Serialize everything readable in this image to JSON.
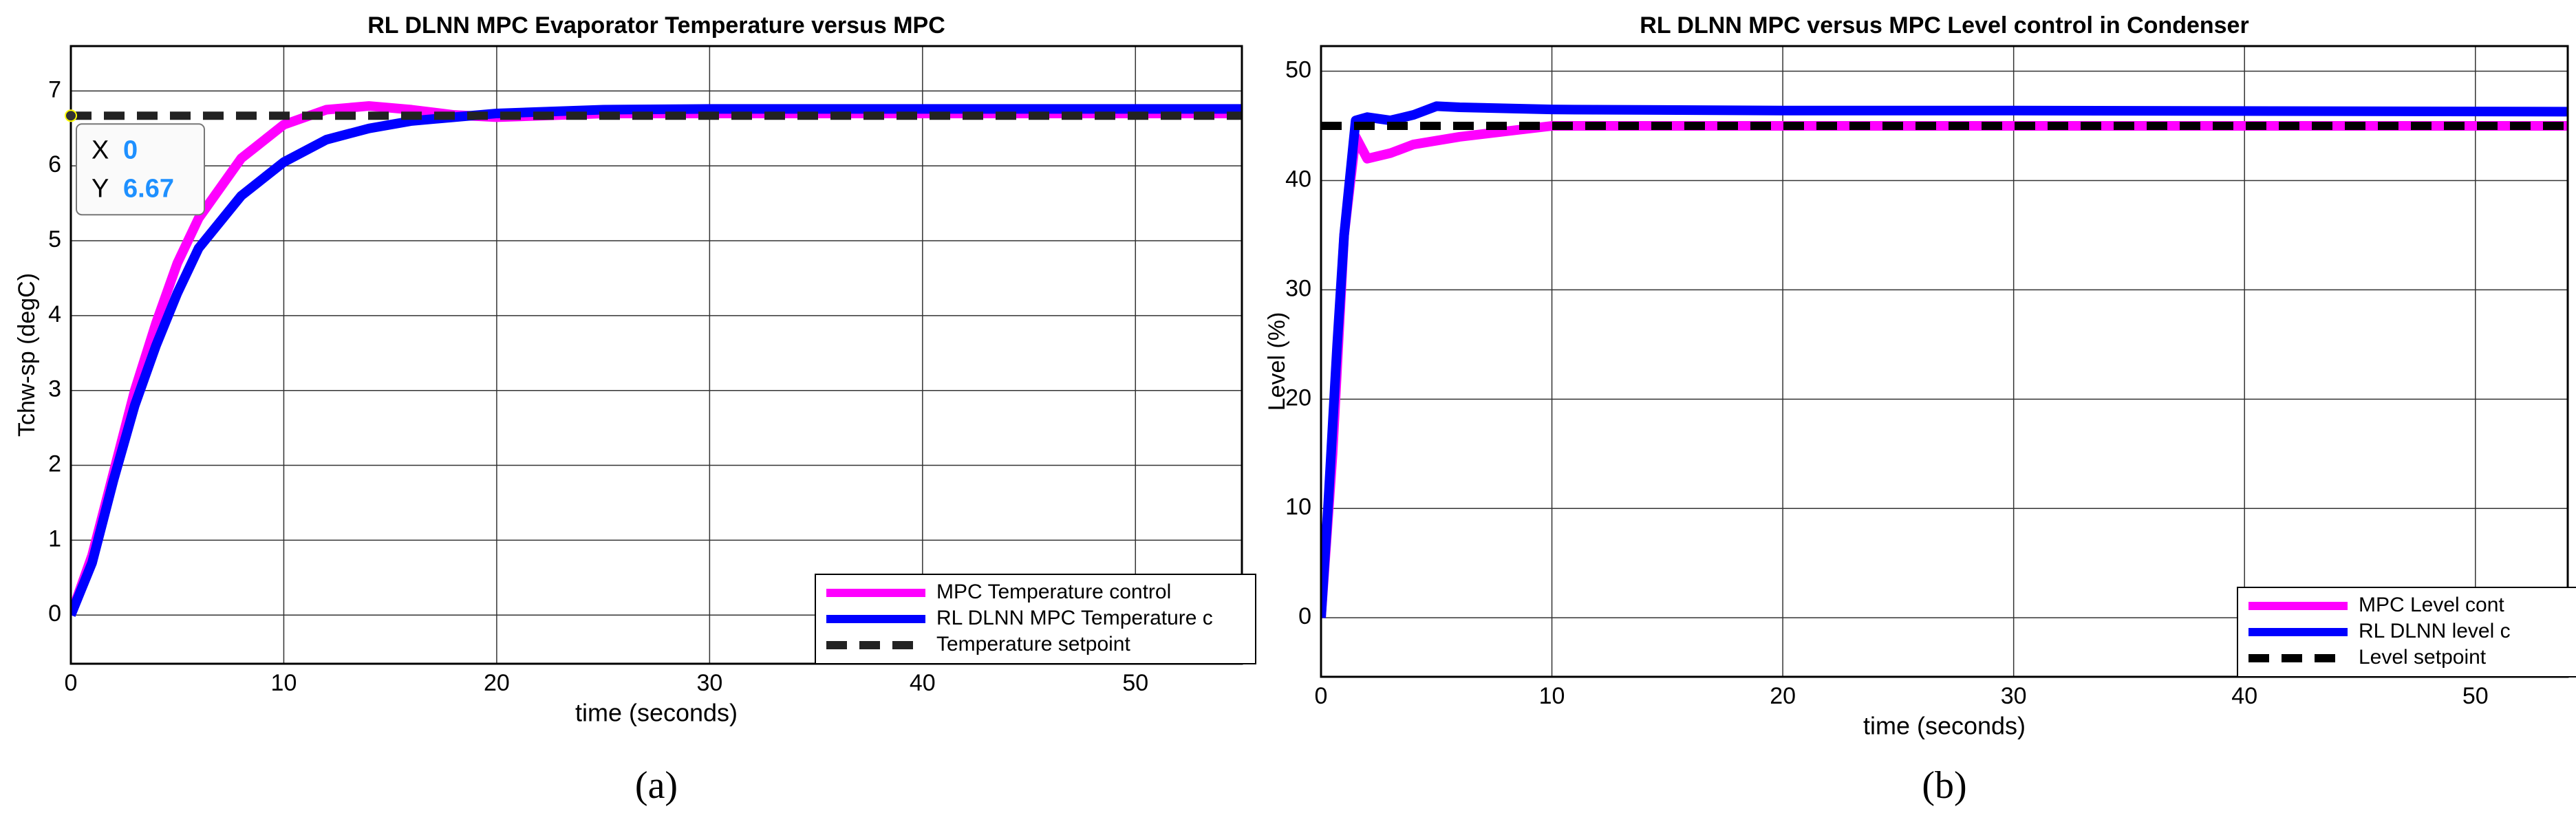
{
  "chart_data": [
    {
      "type": "line",
      "title": "RL DLNN  MPC Evaporator Temperature versus  MPC",
      "x_label": "time (seconds)",
      "y_label": "Tchw-sp (degC)",
      "caption": "(a)",
      "xlim": [
        0,
        55
      ],
      "ylim": [
        -0.65,
        7.6
      ],
      "xticks": [
        0,
        10,
        20,
        30,
        40,
        50
      ],
      "yticks": [
        0,
        1,
        2,
        3,
        4,
        5,
        6,
        7
      ],
      "grid": true,
      "legend": "lower right",
      "datatip": {
        "x_label": "X",
        "x": 0,
        "y_label": "Y",
        "y": 6.67
      },
      "series": [
        {
          "name": "MPC Temperature control",
          "color": "#ff00ff",
          "style": "solid",
          "x": [
            0,
            1,
            2,
            3,
            4,
            5,
            6,
            8,
            10,
            12,
            14,
            16,
            18,
            20,
            22,
            25,
            30,
            40,
            55
          ],
          "values": [
            0,
            0.8,
            1.9,
            3.0,
            3.9,
            4.7,
            5.3,
            6.1,
            6.55,
            6.75,
            6.8,
            6.75,
            6.68,
            6.65,
            6.67,
            6.7,
            6.7,
            6.7,
            6.7
          ]
        },
        {
          "name": "RL DLNN MPC Temperature c",
          "color": "#0000ff",
          "style": "solid",
          "x": [
            0,
            1,
            2,
            3,
            4,
            5,
            6,
            8,
            10,
            12,
            14,
            16,
            18,
            20,
            22,
            25,
            30,
            40,
            55
          ],
          "values": [
            0,
            0.7,
            1.8,
            2.8,
            3.6,
            4.3,
            4.9,
            5.6,
            6.05,
            6.35,
            6.5,
            6.6,
            6.65,
            6.7,
            6.72,
            6.75,
            6.76,
            6.76,
            6.76
          ]
        },
        {
          "name": "Temperature setpoint",
          "color": "#222222",
          "style": "dashed",
          "x": [
            0,
            55
          ],
          "values": [
            6.67,
            6.67
          ]
        }
      ]
    },
    {
      "type": "line",
      "title": "RL DLNN MPC versus MPC Level control in Condenser",
      "x_label": "time (seconds)",
      "y_label": "Level (%)",
      "caption": "(b)",
      "xlim": [
        0,
        54
      ],
      "ylim": [
        -5.4,
        52.3
      ],
      "xticks": [
        0,
        10,
        20,
        30,
        40,
        50
      ],
      "yticks": [
        0,
        10,
        20,
        30,
        40,
        50
      ],
      "grid": true,
      "legend": "lower right",
      "series": [
        {
          "name": "MPC Level cont",
          "color": "#ff00ff",
          "style": "solid",
          "x": [
            0,
            0.5,
            1,
            1.5,
            2,
            3,
            4,
            6,
            8,
            10,
            15,
            54
          ],
          "values": [
            0,
            15,
            35,
            44,
            42,
            42.5,
            43.3,
            44,
            44.5,
            45,
            45,
            45
          ]
        },
        {
          "name": "RL DLNN level c",
          "color": "#0000ff",
          "style": "solid",
          "x": [
            0,
            0.3,
            0.7,
            1,
            1.5,
            2,
            3,
            4,
            5,
            6,
            10,
            20,
            30,
            54
          ],
          "values": [
            0,
            10,
            25,
            35,
            45.5,
            45.8,
            45.5,
            46,
            46.8,
            46.7,
            46.5,
            46.4,
            46.4,
            46.3
          ]
        },
        {
          "name": "Level setpoint",
          "color": "#000000",
          "style": "dashed",
          "x": [
            0,
            54
          ],
          "values": [
            45,
            45
          ]
        }
      ]
    }
  ]
}
